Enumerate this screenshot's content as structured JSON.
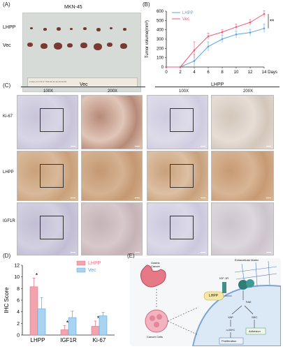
{
  "panelA": {
    "label": "(A)",
    "title": "MKN-45",
    "rows": [
      "LHPP",
      "Vec"
    ],
    "ruler_text": "0   1cm  2   3   4   5   6   7   8   9   10  11  12  13  14  15"
  },
  "panelB": {
    "label": "(B)",
    "significance": "**"
  },
  "panelC": {
    "label": "(C)",
    "groups": [
      "Vec",
      "LHPP"
    ],
    "magnifications": [
      "100X",
      "200X",
      "100X",
      "200X"
    ],
    "rows": [
      "Ki-67",
      "LHPP",
      "IGF1R"
    ]
  },
  "panelD": {
    "label": "(D)",
    "stars": [
      "*",
      "*",
      "*"
    ]
  },
  "panelE": {
    "label": "(E)",
    "texts": {
      "gastric": "Gastric",
      "cancer": "Cancer",
      "igf1r": "IGF-1R",
      "ecm": "Extracellular Matrix",
      "lhpp": "LHPP",
      "fak": "FAK",
      "yap": "YAP",
      "src": "SRC",
      "cmyc": "c-MYC",
      "adhesion": "Adhesion",
      "proliferation": "Proliferation",
      "cancer_cells": "Cancer Cells"
    }
  },
  "chart_data": [
    {
      "type": "line",
      "panel": "B",
      "xlabel": "Days",
      "ylabel": "Tumor volume(mm³)",
      "x": [
        0,
        2,
        4,
        6,
        8,
        10,
        12,
        14
      ],
      "xlim": [
        0,
        14
      ],
      "ylim": [
        0,
        600
      ],
      "yticks": [
        0,
        100,
        200,
        300,
        400,
        500,
        600
      ],
      "legend_position": "top-left",
      "series": [
        {
          "name": "LHPP",
          "color": "#5aa6df",
          "values": [
            0,
            0,
            65,
            220,
            300,
            350,
            370,
            415
          ],
          "errors": [
            0,
            0,
            70,
            50,
            40,
            35,
            35,
            45
          ]
        },
        {
          "name": "Vec",
          "color": "#ee5c78",
          "values": [
            0,
            0,
            180,
            330,
            375,
            430,
            480,
            570
          ],
          "errors": [
            0,
            0,
            90,
            35,
            25,
            30,
            30,
            35
          ]
        }
      ]
    },
    {
      "type": "bar",
      "panel": "D",
      "ylabel": "IHC Score",
      "categories": [
        "LHPP",
        "IGF1R",
        "Ki-67"
      ],
      "ylim": [
        0,
        12
      ],
      "yticks": [
        0,
        2,
        4,
        6,
        8,
        10,
        12
      ],
      "legend_position": "top-right",
      "series": [
        {
          "name": "LHPP",
          "color": "#f3a3ae",
          "edge": "#e76f83",
          "values": [
            8.3,
            0.9,
            1.5
          ],
          "errors": [
            1.5,
            0.7,
            0.9
          ]
        },
        {
          "name": "Vec",
          "color": "#a9d3ef",
          "edge": "#5aa6df",
          "values": [
            4.5,
            3.0,
            3.3
          ],
          "errors": [
            1.9,
            1.1,
            0.6
          ]
        }
      ]
    }
  ]
}
